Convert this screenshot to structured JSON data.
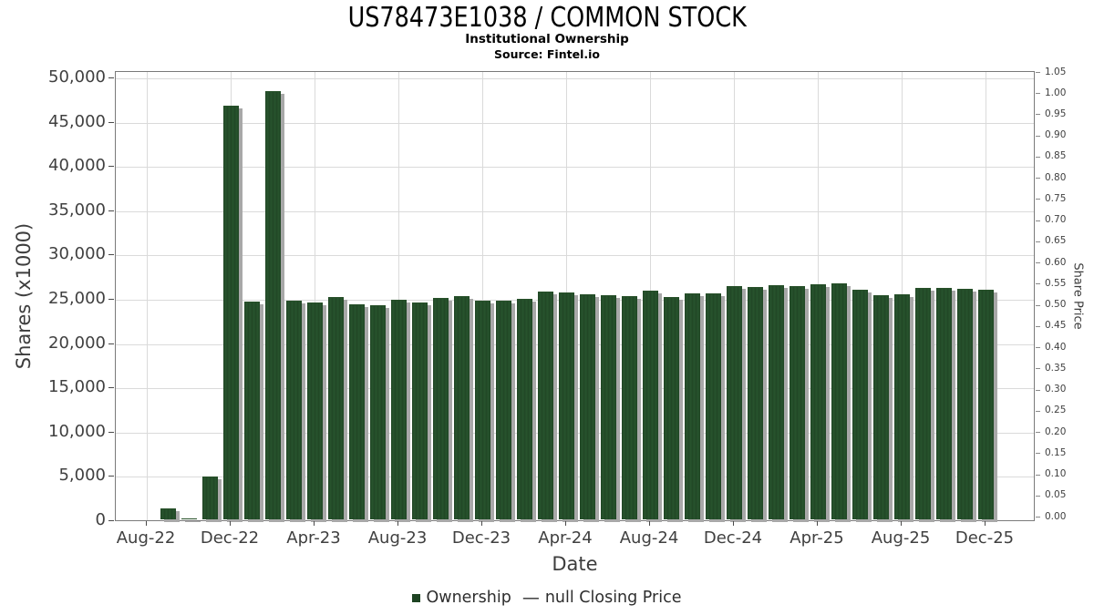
{
  "chart_data": {
    "type": "bar",
    "title": "US78473E1038 / COMMON STOCK",
    "subtitle": "Institutional Ownership",
    "source": "Source: Fintel.io",
    "xlabel": "Date",
    "ylabel": "Shares (x1000)",
    "y2label": "Share Price",
    "ylim": [
      0,
      50000
    ],
    "y2lim": [
      0.0,
      1.05
    ],
    "grid": true,
    "legend_position": "bottom",
    "bar_color": "#234f28",
    "shadow_color": "#a8a8a8",
    "gridline_color": "#dadada",
    "x_tick_labels": [
      "Aug-22",
      "Dec-22",
      "Apr-23",
      "Aug-23",
      "Dec-23",
      "Apr-24",
      "Aug-24",
      "Dec-24",
      "Apr-25",
      "Aug-25",
      "Dec-25"
    ],
    "y_ticks": [
      0,
      5000,
      10000,
      15000,
      20000,
      25000,
      30000,
      35000,
      40000,
      45000,
      50000
    ],
    "y_tick_labels": [
      "0",
      "5,000",
      "10,000",
      "15,000",
      "20,000",
      "25,000",
      "30,000",
      "35,000",
      "40,000",
      "45,000",
      "50,000"
    ],
    "y2_tick_labels": [
      "1.05",
      "1.00",
      "0.95",
      "0.90",
      "0.85",
      "0.80",
      "0.75",
      "0.70",
      "0.65",
      "0.60",
      "0.55",
      "0.50",
      "0.45",
      "0.40",
      "0.35",
      "0.30",
      "0.25",
      "0.20",
      "0.15",
      "0.10",
      "0.05",
      "0.00"
    ],
    "categories": [
      "Sep-22",
      "Oct-22",
      "Nov-22",
      "Dec-22",
      "Jan-23",
      "Feb-23",
      "Mar-23",
      "Apr-23",
      "May-23",
      "Jun-23",
      "Jul-23",
      "Aug-23",
      "Sep-23",
      "Oct-23",
      "Nov-23",
      "Dec-23",
      "Jan-24",
      "Feb-24",
      "Mar-24",
      "Apr-24",
      "May-24",
      "Jun-24",
      "Jul-24",
      "Aug-24",
      "Sep-24",
      "Oct-24",
      "Nov-24",
      "Dec-24",
      "Jan-25",
      "Feb-25",
      "Mar-25",
      "Apr-25",
      "May-25",
      "Jun-25",
      "Jul-25",
      "Aug-25",
      "Sep-25",
      "Oct-25",
      "Nov-25",
      "Dec-25"
    ],
    "series": [
      {
        "name": "Ownership",
        "type": "bar",
        "values": [
          1200,
          100,
          4800,
          46700,
          24600,
          48400,
          24700,
          24500,
          25100,
          24300,
          24200,
          24800,
          24500,
          25000,
          25200,
          24700,
          24700,
          24900,
          25700,
          25600,
          25400,
          25300,
          25200,
          25800,
          25100,
          25500,
          25500,
          26300,
          26200,
          26400,
          26300,
          26500,
          26600,
          25900,
          25300,
          25400,
          26100,
          26100,
          26000,
          25900
        ]
      },
      {
        "name": "null Closing Price",
        "type": "line",
        "values": []
      }
    ],
    "legend": [
      {
        "label": "Ownership",
        "marker": "square",
        "color": "#1e4423",
        "glyph": "■"
      },
      {
        "label": "null Closing Price",
        "marker": "dash",
        "color": "#2e2e2e",
        "glyph": "—"
      }
    ]
  }
}
